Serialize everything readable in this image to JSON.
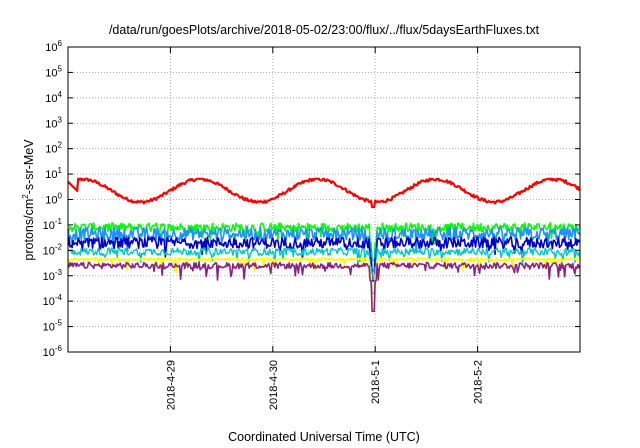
{
  "chart_data": {
    "type": "line",
    "title": "/data/run/goesPlots/archive/2018-05-02/23:00/flux/../flux/5daysEarthFluxes.txt",
    "xlabel": "Coordinated Universal Time (UTC)",
    "ylabel": "protons/cm2-s-sr-MeV",
    "ylabel_parts": {
      "pre": "protons/cm",
      "sup": "2",
      "post": "-s-sr-MeV"
    },
    "yscale": "log",
    "ylim_exp": [
      -6,
      6
    ],
    "y_ticks": [
      {
        "base": "10",
        "exp": "-6"
      },
      {
        "base": "10",
        "exp": "-5"
      },
      {
        "base": "10",
        "exp": "-4"
      },
      {
        "base": "10",
        "exp": "-3"
      },
      {
        "base": "10",
        "exp": "-2"
      },
      {
        "base": "10",
        "exp": "-1"
      },
      {
        "base": "10",
        "exp": "0"
      },
      {
        "base": "10",
        "exp": "1"
      },
      {
        "base": "10",
        "exp": "2"
      },
      {
        "base": "10",
        "exp": "3"
      },
      {
        "base": "10",
        "exp": "4"
      },
      {
        "base": "10",
        "exp": "5"
      },
      {
        "base": "10",
        "exp": "6"
      }
    ],
    "xlim_days": [
      0,
      5
    ],
    "x_ticks": [
      {
        "label": "2018-4-29",
        "day": 1.0
      },
      {
        "label": "2018-4-30",
        "day": 2.0
      },
      {
        "label": "2018-5-1",
        "day": 3.0
      },
      {
        "label": "2018-5-2",
        "day": 4.0
      }
    ],
    "grid": true,
    "dip_day": 2.98,
    "series": [
      {
        "color": "#ff0000",
        "stroke_width": 2.2,
        "pattern": "red"
      },
      {
        "color": "#00ff00",
        "stroke_width": 1.6,
        "base": -1.1,
        "amp": 0.18,
        "dip": -2.4
      },
      {
        "color": "#1e90ff",
        "stroke_width": 1.6,
        "base": -1.35,
        "amp": 0.25,
        "dip": -2.8
      },
      {
        "color": "#0000cd",
        "stroke_width": 1.6,
        "base": -1.7,
        "amp": 0.22,
        "dip": -3.2
      },
      {
        "color": "#00c8c8",
        "stroke_width": 1.4,
        "base": -2.05,
        "amp": 0.15,
        "dip": -3.7
      },
      {
        "color": "#ffff00",
        "stroke_width": 1.6,
        "base": -2.35,
        "amp": 0.05,
        "dip": -4.1
      },
      {
        "color": "#8b2282",
        "stroke_width": 1.6,
        "base": -2.6,
        "amp": 0.12,
        "dip": -4.4
      }
    ]
  }
}
